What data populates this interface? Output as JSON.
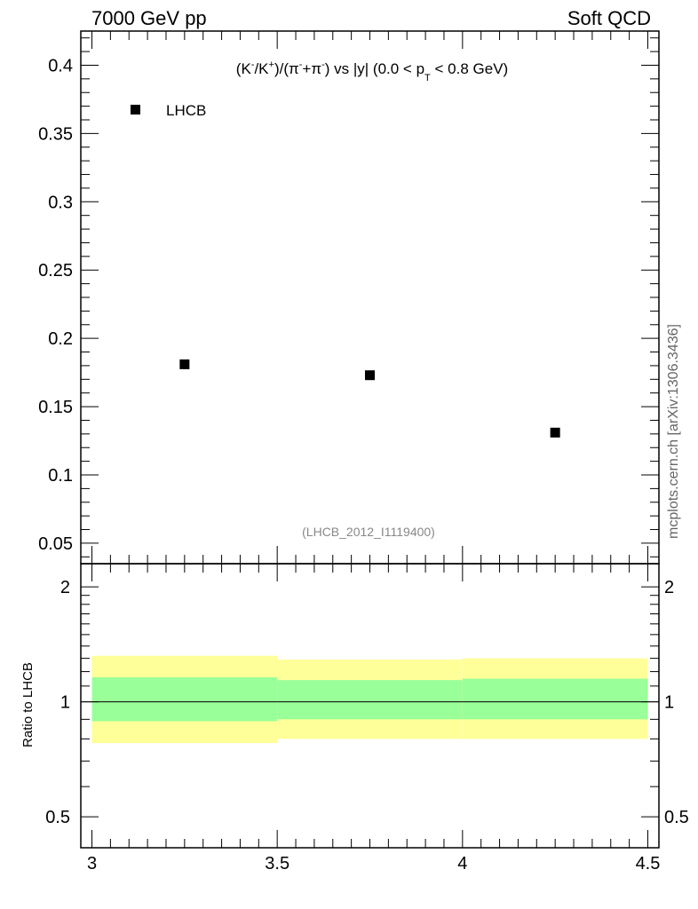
{
  "header": {
    "left_label": "7000 GeV pp",
    "right_label": "Soft QCD"
  },
  "watermark": "mcplots.cern.ch [arXiv:1306.3436]",
  "reference": "(LHCB_2012_I1119400)",
  "title": {
    "part1": "(K",
    "sup1": "-",
    "part2": "/K",
    "sup2": "+",
    "part3": ")/(π",
    "sup3": "-",
    "part4": "+π",
    "sup4": "-",
    "part5": ") vs |y| (0.0 < p",
    "sub1": "T",
    "part6": " < 0.8 GeV)"
  },
  "colors": {
    "data_marker": "#000000",
    "band_outer": "#ffff99",
    "band_inner": "#99ff99",
    "reference_text": "#888888",
    "watermark_text": "#666666"
  },
  "chart_data": [
    {
      "type": "scatter",
      "panel": "main",
      "series": [
        {
          "name": "LHCB",
          "x": [
            3.25,
            3.75,
            4.25
          ],
          "y": [
            0.181,
            0.173,
            0.131
          ]
        }
      ],
      "xlim": [
        2.97,
        4.53
      ],
      "ylim": [
        0.035,
        0.425
      ],
      "yticks": [
        0.05,
        0.1,
        0.15,
        0.2,
        0.25,
        0.3,
        0.35,
        0.4
      ],
      "ytick_labels": [
        "0.05",
        "0.1",
        "0.15",
        "0.2",
        "0.25",
        "0.3",
        "0.35",
        "0.4"
      ],
      "legend_position": "top-left"
    },
    {
      "type": "area",
      "panel": "ratio",
      "ylabel": "Ratio to LHCB",
      "yscale": "log",
      "ylim": [
        0.415,
        2.3
      ],
      "xlim": [
        2.97,
        4.53
      ],
      "bins": [
        {
          "x_low": 3.0,
          "x_high": 3.5,
          "outer_low": 0.78,
          "outer_high": 1.32,
          "inner_low": 0.89,
          "inner_high": 1.16
        },
        {
          "x_low": 3.5,
          "x_high": 4.0,
          "outer_low": 0.8,
          "outer_high": 1.29,
          "inner_low": 0.9,
          "inner_high": 1.14
        },
        {
          "x_low": 4.0,
          "x_high": 4.5,
          "outer_low": 0.8,
          "outer_high": 1.3,
          "inner_low": 0.9,
          "inner_high": 1.15
        }
      ],
      "reference_line": 1.0,
      "yticks": [
        0.5,
        1,
        2
      ],
      "ytick_labels": [
        "0.5",
        "1",
        "2"
      ],
      "xticks": [
        3,
        3.5,
        4,
        4.5
      ],
      "xtick_labels": [
        "3",
        "3.5",
        "4",
        "4.5"
      ]
    }
  ]
}
